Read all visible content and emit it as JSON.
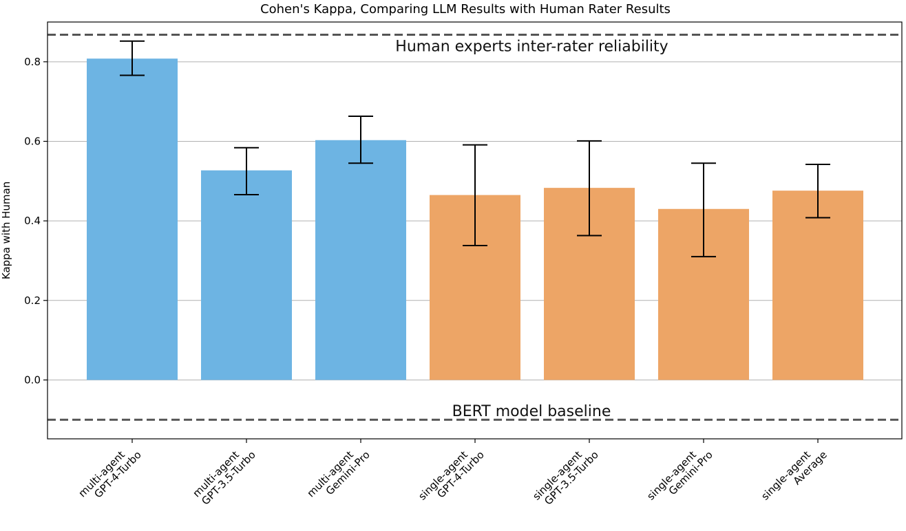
{
  "chart_data": {
    "type": "bar",
    "title": "Cohen's Kappa, Comparing LLM Results with Human Rater Results",
    "xlabel": "",
    "ylabel": "Kappa with Human",
    "ylim": [
      -0.148,
      0.9
    ],
    "yticks": [
      0.0,
      0.2,
      0.4,
      0.6,
      0.8
    ],
    "ytick_labels": [
      "0.0",
      "0.2",
      "0.4",
      "0.6",
      "0.8"
    ],
    "grid": "y",
    "categories": [
      [
        "multi-agent",
        "GPT-4-Turbo"
      ],
      [
        "multi-agent",
        "GPT-3.5-Turbo"
      ],
      [
        "multi-agent",
        "Gemini-Pro"
      ],
      [
        "single-agent",
        "GPT-4-Turbo"
      ],
      [
        "single-agent",
        "GPT-3.5-Turbo"
      ],
      [
        "single-agent",
        "Gemini-Pro"
      ],
      [
        "single-agent",
        "Average"
      ]
    ],
    "values": [
      0.808,
      0.527,
      0.603,
      0.465,
      0.483,
      0.43,
      0.476
    ],
    "error_low": [
      0.766,
      0.466,
      0.545,
      0.338,
      0.363,
      0.31,
      0.408
    ],
    "error_high": [
      0.852,
      0.584,
      0.663,
      0.591,
      0.601,
      0.545,
      0.542
    ],
    "bar_colors": [
      "#6DB4E3",
      "#6DB4E3",
      "#6DB4E3",
      "#EDA566",
      "#EDA566",
      "#EDA566",
      "#EDA566"
    ],
    "reference_lines": [
      {
        "label": "Human experts inter-rater reliability",
        "value": 0.868
      },
      {
        "label": "BERT model baseline",
        "value": -0.1
      }
    ]
  }
}
